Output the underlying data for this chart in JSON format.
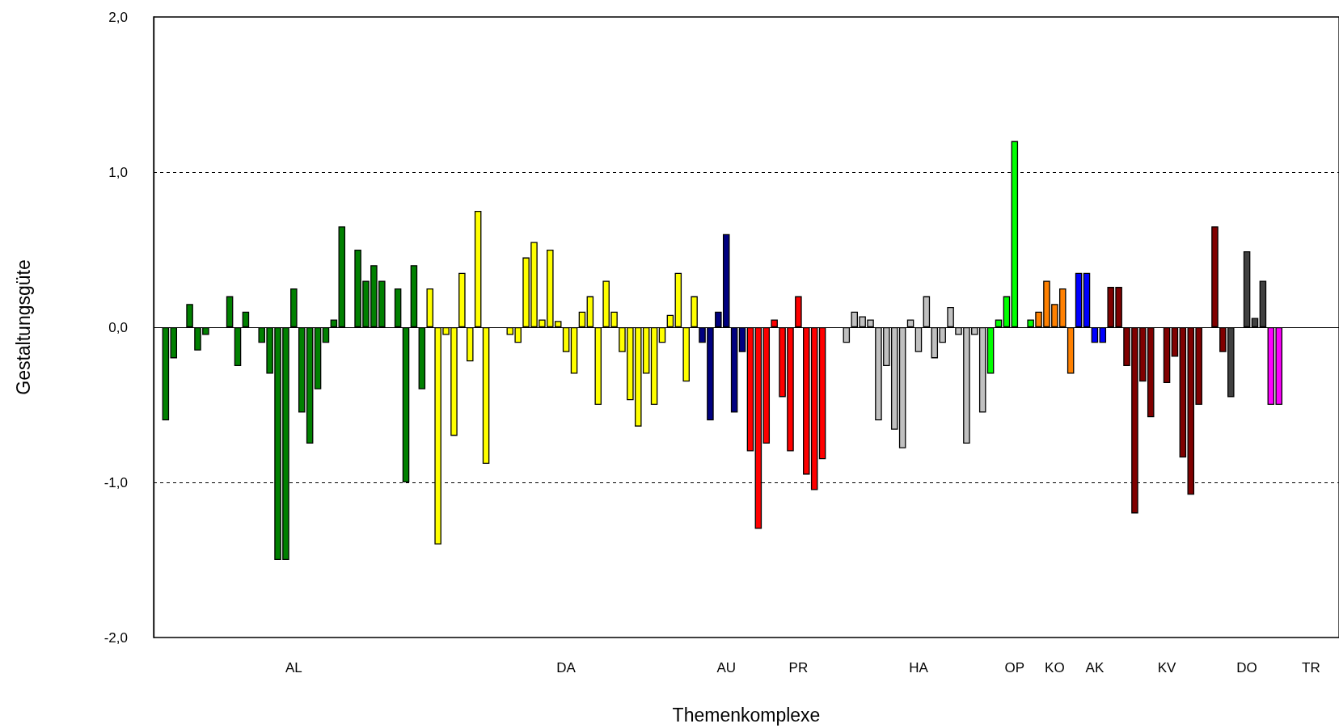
{
  "chart_data": {
    "type": "bar",
    "xlabel": "Themenkomplexe",
    "ylabel": "Gestaltungsgüte",
    "categories": [
      null,
      null,
      null,
      null,
      null,
      null,
      null,
      null,
      null,
      null,
      null,
      null,
      null,
      null,
      null,
      null,
      null,
      "AL",
      null,
      null,
      null,
      null,
      null,
      null,
      null,
      null,
      null,
      null,
      null,
      null,
      null,
      null,
      null,
      null,
      null,
      null,
      null,
      null,
      null,
      null,
      null,
      null,
      null,
      null,
      null,
      null,
      null,
      null,
      null,
      null,
      null,
      "DA",
      null,
      null,
      null,
      null,
      null,
      null,
      null,
      null,
      null,
      null,
      null,
      null,
      null,
      null,
      null,
      null,
      null,
      null,
      null,
      "AU",
      null,
      null,
      null,
      null,
      null,
      null,
      null,
      null,
      "PR",
      null,
      null,
      null,
      null,
      null,
      null,
      null,
      null,
      null,
      null,
      null,
      null,
      null,
      null,
      "HA",
      null,
      null,
      null,
      null,
      null,
      null,
      null,
      null,
      null,
      null,
      null,
      "OP",
      null,
      null,
      null,
      null,
      "KO",
      null,
      null,
      null,
      null,
      "AK",
      null,
      null,
      null,
      null,
      null,
      null,
      null,
      null,
      "KV",
      null,
      null,
      null,
      null,
      null,
      null,
      null,
      null,
      null,
      "DO",
      null,
      null,
      null,
      null,
      null,
      null,
      null,
      "TR",
      null,
      null,
      null
    ],
    "values": [
      null,
      -0.6,
      -0.2,
      null,
      0.15,
      -0.15,
      -0.05,
      null,
      null,
      0.2,
      -0.25,
      0.1,
      null,
      -0.1,
      -0.3,
      -1.5,
      -1.5,
      0.25,
      -0.55,
      -0.75,
      -0.4,
      -0.1,
      0.05,
      0.65,
      null,
      0.5,
      0.3,
      0.4,
      0.3,
      null,
      0.25,
      -1.0,
      0.4,
      -0.4,
      0.25,
      -1.4,
      -0.05,
      -0.7,
      0.35,
      -0.22,
      0.75,
      -0.88,
      null,
      null,
      -0.05,
      -0.1,
      0.45,
      0.55,
      0.05,
      0.5,
      0.04,
      -0.16,
      -0.3,
      0.1,
      0.2,
      -0.5,
      0.3,
      0.1,
      -0.16,
      -0.47,
      -0.64,
      -0.3,
      -0.5,
      -0.1,
      0.08,
      0.35,
      -0.35,
      0.2,
      -0.1,
      -0.6,
      0.1,
      0.6,
      -0.55,
      -0.16,
      -0.8,
      -1.3,
      -0.75,
      0.05,
      -0.45,
      -0.8,
      0.2,
      -0.95,
      -1.05,
      -0.85,
      null,
      null,
      -0.1,
      0.1,
      0.07,
      0.05,
      -0.6,
      -0.25,
      -0.66,
      -0.78,
      0.05,
      -0.16,
      0.2,
      -0.2,
      -0.1,
      0.13,
      -0.05,
      -0.75,
      -0.05,
      -0.55,
      -0.3,
      0.05,
      0.2,
      1.2,
      null,
      0.05,
      0.1,
      0.3,
      0.15,
      0.25,
      -0.3,
      0.35,
      0.35,
      -0.1,
      -0.1,
      0.26,
      0.26,
      -0.25,
      -1.2,
      -0.35,
      -0.58,
      null,
      -0.36,
      -0.19,
      -0.84,
      -1.08,
      -0.5,
      null,
      0.65,
      -0.16,
      -0.45,
      null,
      0.49,
      0.06,
      0.3,
      -0.5,
      -0.5,
      null,
      null,
      null,
      null,
      null,
      null,
      null
    ],
    "colors": [
      null,
      "#008000",
      "#008000",
      null,
      "#008000",
      "#008000",
      "#008000",
      null,
      null,
      "#008000",
      "#008000",
      "#008000",
      null,
      "#008000",
      "#008000",
      "#008000",
      "#008000",
      "#008000",
      "#008000",
      "#008000",
      "#008000",
      "#008000",
      "#008000",
      "#008000",
      null,
      "#008000",
      "#008000",
      "#008000",
      "#008000",
      null,
      "#008000",
      "#008000",
      "#008000",
      "#008000",
      "#ffff00",
      "#ffff00",
      "#ffff00",
      "#ffff00",
      "#ffff00",
      "#ffff00",
      "#ffff00",
      "#ffff00",
      null,
      null,
      "#ffff00",
      "#ffff00",
      "#ffff00",
      "#ffff00",
      "#ffff00",
      "#ffff00",
      "#ffff00",
      "#ffff00",
      "#ffff00",
      "#ffff00",
      "#ffff00",
      "#ffff00",
      "#ffff00",
      "#ffff00",
      "#ffff00",
      "#ffff00",
      "#ffff00",
      "#ffff00",
      "#ffff00",
      "#ffff00",
      "#ffff00",
      "#ffff00",
      "#ffff00",
      "#ffff00",
      "#000080",
      "#000080",
      "#000080",
      "#000080",
      "#000080",
      "#000080",
      "#ff0000",
      "#ff0000",
      "#ff0000",
      "#ff0000",
      "#ff0000",
      "#ff0000",
      "#ff0000",
      "#ff0000",
      "#ff0000",
      "#ff0000",
      null,
      null,
      "#c0c0c0",
      "#c0c0c0",
      "#c0c0c0",
      "#c0c0c0",
      "#c0c0c0",
      "#c0c0c0",
      "#c0c0c0",
      "#c0c0c0",
      "#c0c0c0",
      "#c0c0c0",
      "#c0c0c0",
      "#c0c0c0",
      "#c0c0c0",
      "#c0c0c0",
      "#c0c0c0",
      "#c0c0c0",
      "#c0c0c0",
      "#c0c0c0",
      "#00ff00",
      "#00ff00",
      "#00ff00",
      "#00ff00",
      null,
      "#00ff00",
      "#ff8000",
      "#ff8000",
      "#ff8000",
      "#ff8000",
      "#ff8000",
      "#0000ff",
      "#0000ff",
      "#0000ff",
      "#0000ff",
      "#800000",
      "#800000",
      "#800000",
      "#800000",
      "#800000",
      "#800000",
      null,
      "#800000",
      "#800000",
      "#800000",
      "#800000",
      "#800000",
      null,
      "#800000",
      "#800000",
      "#404040",
      null,
      "#404040",
      "#404040",
      "#404040",
      "#ff00ff",
      "#ff00ff",
      null,
      null,
      null,
      null,
      null,
      null,
      null
    ],
    "ylim": [
      -2,
      2
    ],
    "yticks": [
      {
        "value": -2,
        "label": "-2,0"
      },
      {
        "value": -1,
        "label": "-1,0"
      },
      {
        "value": 0,
        "label": "0,0"
      },
      {
        "value": 1,
        "label": "1,0"
      },
      {
        "value": 2,
        "label": "2,0"
      }
    ],
    "ref_lines": [
      {
        "axis": "y",
        "value": 1,
        "line_style": "dashed"
      },
      {
        "axis": "y",
        "value": -1,
        "line_style": "dashed"
      },
      {
        "axis": "y",
        "value": 0,
        "line_style": "solid"
      }
    ],
    "grid": false
  }
}
